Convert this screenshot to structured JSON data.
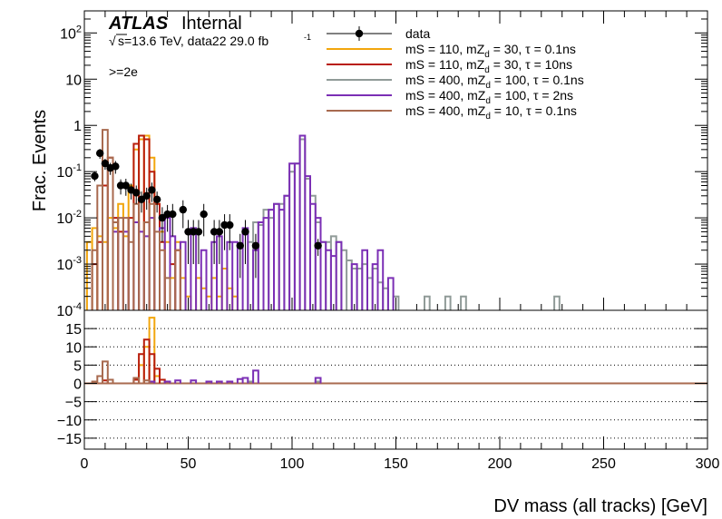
{
  "header": {
    "atlas": "ATLAS",
    "atlas_suffix": "Internal",
    "sqrt_symbol": "√",
    "energy_line": "s=13.6 TeV, data22 29.0 fb",
    "lumi_exp": "-1",
    "selection": ">=2e"
  },
  "chart_data": [
    {
      "type": "line",
      "panel": "main",
      "ylabel": "Frac. Events",
      "yscale": "log",
      "ylim": [
        0.0001,
        300
      ],
      "xlim": [
        0,
        300
      ],
      "bin_width": 2.5,
      "y_ticks": [
        {
          "v": 0.001,
          "b": "10",
          "e": "-3"
        },
        {
          "v": 0.01,
          "b": "10",
          "e": "-2"
        },
        {
          "v": 0.1,
          "b": "10",
          "e": "-1"
        },
        {
          "v": 1,
          "b": "1",
          "e": ""
        },
        {
          "v": 10,
          "b": "10",
          "e": ""
        },
        {
          "v": 100,
          "b": "10",
          "e": "2"
        },
        {
          "v": 0.0001,
          "b": "10",
          "e": "-4"
        }
      ],
      "legend": [
        {
          "key": "data",
          "pre": "data",
          "sub": "",
          "post": ""
        },
        {
          "key": "s1",
          "pre": "mS = 110, mZ",
          "sub": "d",
          "post": " = 30, τ = 0.1ns"
        },
        {
          "key": "s2",
          "pre": "mS = 110, mZ",
          "sub": "d",
          "post": " = 30, τ = 10ns"
        },
        {
          "key": "s3",
          "pre": "mS = 400, mZ",
          "sub": "d",
          "post": " = 100, τ = 0.1ns"
        },
        {
          "key": "s4",
          "pre": "mS = 400, mZ",
          "sub": "d",
          "post": " = 100, τ = 2ns"
        },
        {
          "key": "s5",
          "pre": "mS = 400, mZ",
          "sub": "d",
          "post": " = 10, τ = 0.1ns"
        }
      ],
      "series": [
        {
          "key": "s1",
          "color": "#f2a60d",
          "points": [
            [
              2.5,
              0.003
            ],
            [
              5,
              0.006
            ],
            [
              7.5,
              0.004
            ],
            [
              10,
              0.003
            ],
            [
              12.5,
              0.01
            ],
            [
              15,
              0.006
            ],
            [
              17.5,
              0.02
            ],
            [
              20,
              0.004
            ],
            [
              22.5,
              0.05
            ],
            [
              25,
              0.3
            ],
            [
              27.5,
              0.5
            ],
            [
              30,
              0.6
            ],
            [
              32.5,
              0.2
            ],
            [
              35,
              0.02
            ],
            [
              37.5,
              0.005
            ],
            [
              40,
              0.003
            ],
            [
              42.5,
              0.0005
            ],
            [
              45,
              0.003
            ],
            [
              47.5,
              0.0005
            ],
            [
              50,
              0.0002
            ],
            [
              55,
              0.0005
            ],
            [
              57.5,
              0.0003
            ],
            [
              60,
              0.0002
            ],
            [
              62.5,
              0.0005
            ],
            [
              65,
              0.0002
            ],
            [
              67.5,
              0.0008
            ],
            [
              70,
              0.0003
            ],
            [
              72.5,
              0.0002
            ]
          ]
        },
        {
          "key": "s2",
          "color": "#b81c0a",
          "points": [
            [
              5,
              0.001
            ],
            [
              7.5,
              0.003
            ],
            [
              10,
              0.05
            ],
            [
              12.5,
              0.2
            ],
            [
              15,
              0.01
            ],
            [
              17.5,
              0.005
            ],
            [
              22.5,
              0.01
            ],
            [
              25,
              0.4
            ],
            [
              27.5,
              0.6
            ],
            [
              30,
              0.5
            ],
            [
              32.5,
              0.1
            ],
            [
              35,
              0.02
            ],
            [
              37.5,
              0.003
            ],
            [
              42.5,
              0.001
            ],
            [
              45,
              0.002
            ]
          ]
        },
        {
          "key": "s3",
          "color": "#909b98",
          "points": [
            [
              80,
              0.003
            ],
            [
              82.5,
              0.008
            ],
            [
              85,
              0.007
            ],
            [
              87.5,
              0.015
            ],
            [
              90,
              0.01
            ],
            [
              92.5,
              0.02
            ],
            [
              95,
              0.02
            ],
            [
              97.5,
              0.03
            ],
            [
              100,
              0.1
            ],
            [
              102.5,
              0.15
            ],
            [
              105,
              0.5
            ],
            [
              107.5,
              0.07
            ],
            [
              110,
              0.03
            ],
            [
              112.5,
              0.008
            ],
            [
              115,
              0.003
            ],
            [
              117.5,
              0.003
            ],
            [
              120,
              0.004
            ],
            [
              122.5,
              0.003
            ],
            [
              125,
              0.002
            ],
            [
              127.5,
              0.0012
            ],
            [
              130,
              0.0008
            ],
            [
              132.5,
              0.0008
            ],
            [
              135,
              0.001
            ],
            [
              137.5,
              0.0005
            ],
            [
              140,
              0.0008
            ],
            [
              142.5,
              0.0004
            ],
            [
              145,
              0.0003
            ],
            [
              150,
              0.0002
            ],
            [
              165,
              0.0002
            ],
            [
              175,
              0.0002
            ],
            [
              182.5,
              0.0002
            ],
            [
              227.5,
              0.0002
            ]
          ]
        },
        {
          "key": "s4",
          "color": "#7b2fb5",
          "points": [
            [
              15,
              0.005
            ],
            [
              20,
              0.005
            ],
            [
              25,
              0.008
            ],
            [
              27.5,
              0.005
            ],
            [
              30,
              0.004
            ],
            [
              32.5,
              0.01
            ],
            [
              37.5,
              0.006
            ],
            [
              40,
              0.01
            ],
            [
              42.5,
              0.004
            ],
            [
              47.5,
              0.003
            ],
            [
              52.5,
              0.006
            ],
            [
              57.5,
              0.002
            ],
            [
              62.5,
              0.003
            ],
            [
              65,
              0.004
            ],
            [
              70,
              0.003
            ],
            [
              72.5,
              0.003
            ],
            [
              77.5,
              0.006
            ],
            [
              82.5,
              0.002
            ],
            [
              85,
              0.008
            ],
            [
              87.5,
              0.01
            ],
            [
              90,
              0.015
            ],
            [
              92.5,
              0.02
            ],
            [
              95,
              0.015
            ],
            [
              97.5,
              0.03
            ],
            [
              100,
              0.15
            ],
            [
              102.5,
              0.15
            ],
            [
              105,
              0.6
            ],
            [
              107.5,
              0.08
            ],
            [
              110,
              0.02
            ],
            [
              112.5,
              0.01
            ],
            [
              115,
              0.003
            ],
            [
              117.5,
              0.002
            ],
            [
              120,
              0.0015
            ],
            [
              122.5,
              0.003
            ],
            [
              130,
              0.001
            ],
            [
              135,
              0.002
            ],
            [
              140,
              0.001
            ],
            [
              142.5,
              0.002
            ],
            [
              147.5,
              0.0005
            ]
          ]
        },
        {
          "key": "s5",
          "color": "#a86a4f",
          "points": [
            [
              5,
              0.002
            ],
            [
              7.5,
              0.05
            ],
            [
              10,
              0.8
            ],
            [
              12.5,
              0.2
            ],
            [
              15,
              0.008
            ],
            [
              17.5,
              0.01
            ],
            [
              20,
              0.01
            ],
            [
              22.5,
              0.003
            ],
            [
              25,
              0.02
            ],
            [
              30,
              0.008
            ],
            [
              32.5,
              0.02
            ],
            [
              35,
              0.005
            ],
            [
              37.5,
              0.002
            ],
            [
              40,
              0.0005
            ],
            [
              45,
              0.002
            ]
          ]
        }
      ],
      "data": {
        "key": "data",
        "color": "#000000",
        "points": [
          [
            5,
            0.08,
            0.018
          ],
          [
            7.5,
            0.25,
            0.06
          ],
          [
            10,
            0.15,
            0.04
          ],
          [
            12.5,
            0.12,
            0.035
          ],
          [
            15,
            0.13,
            0.04
          ],
          [
            17.5,
            0.05,
            0.018
          ],
          [
            20,
            0.05,
            0.02
          ],
          [
            22.5,
            0.04,
            0.015
          ],
          [
            25,
            0.035,
            0.015
          ],
          [
            27.5,
            0.025,
            0.012
          ],
          [
            30,
            0.03,
            0.015
          ],
          [
            32.5,
            0.04,
            0.018
          ],
          [
            35,
            0.025,
            0.012
          ],
          [
            37.5,
            0.01,
            0.007
          ],
          [
            40,
            0.012,
            0.007
          ],
          [
            42.5,
            0.012,
            0.008
          ],
          [
            47.5,
            0.015,
            0.009
          ],
          [
            50,
            0.005,
            0.004
          ],
          [
            52.5,
            0.005,
            0.004
          ],
          [
            55,
            0.005,
            0.004
          ],
          [
            57.5,
            0.012,
            0.008
          ],
          [
            62.5,
            0.005,
            0.004
          ],
          [
            65,
            0.005,
            0.004
          ],
          [
            67.5,
            0.007,
            0.005
          ],
          [
            70,
            0.007,
            0.005
          ],
          [
            75,
            0.0025,
            0.002
          ],
          [
            77.5,
            0.005,
            0.004
          ],
          [
            82.5,
            0.0025,
            0.002
          ],
          [
            112.5,
            0.0025,
            0.001
          ]
        ]
      }
    },
    {
      "type": "line",
      "panel": "ratio",
      "xlabel": "DV mass (all tracks) [GeV]",
      "ylim": [
        -18,
        20
      ],
      "xlim": [
        0,
        300
      ],
      "x_ticks": [
        0,
        50,
        100,
        150,
        200,
        250,
        300
      ],
      "y_ticks": [
        -15,
        -10,
        -5,
        0,
        5,
        10,
        15
      ],
      "grid": "horizontal dotted",
      "series": [
        {
          "key": "s1",
          "color": "#f2a60d",
          "points": [
            [
              27.5,
              5
            ],
            [
              30,
              10
            ],
            [
              32.5,
              18
            ],
            [
              35,
              2
            ]
          ]
        },
        {
          "key": "s2",
          "color": "#b81c0a",
          "points": [
            [
              10,
              0.8
            ],
            [
              25,
              1
            ],
            [
              27.5,
              8
            ],
            [
              30,
              12
            ],
            [
              32.5,
              8
            ],
            [
              35,
              4
            ],
            [
              37.5,
              1
            ]
          ]
        },
        {
          "key": "s3",
          "color": "#909b98",
          "points": [
            [
              80,
              0.5
            ],
            [
              112.5,
              0.5
            ]
          ]
        },
        {
          "key": "s4",
          "color": "#7b2fb5",
          "points": [
            [
              32.5,
              0.5
            ],
            [
              40,
              0.5
            ],
            [
              45,
              0.8
            ],
            [
              52.5,
              0.8
            ],
            [
              60,
              0.5
            ],
            [
              65,
              0.5
            ],
            [
              70,
              0.5
            ],
            [
              75,
              1.2
            ],
            [
              77.5,
              1.5
            ],
            [
              82.5,
              3.5
            ],
            [
              112.5,
              1.5
            ]
          ]
        },
        {
          "key": "s5",
          "color": "#a86a4f",
          "points": [
            [
              5,
              0.5
            ],
            [
              7.5,
              2
            ],
            [
              10,
              6
            ],
            [
              12.5,
              1
            ],
            [
              25,
              1.5
            ],
            [
              30,
              0.8
            ]
          ]
        }
      ]
    }
  ]
}
